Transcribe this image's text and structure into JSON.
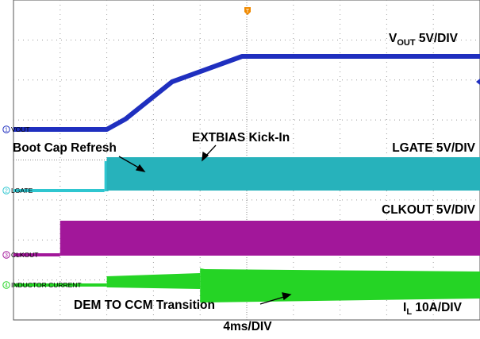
{
  "chart_data": {
    "type": "line",
    "timebase": "4ms/DIV",
    "colors": {
      "VOUT": "#1f2fbf",
      "LGATE": "#2fc6d0",
      "CLKOUT": "#a2179a",
      "INDUCTOR CURRENT": "#25d425"
    },
    "channels": [
      {
        "number": "1",
        "name": "VOUT",
        "scale_label_pre": "V",
        "scale_label_sub": "OUT",
        "scale_label_post": " 5V/DIV",
        "trace": "ramp",
        "start_div": 2.0,
        "end_div": 4.9,
        "low_div": 6.93,
        "high_div": 0.0
      },
      {
        "number": "2",
        "name": "LGATE",
        "scale_label": "LGATE 5V/DIV",
        "trace": "switching",
        "start_div": 2.0,
        "end_div": 10.0
      },
      {
        "number": "3",
        "name": "CLKOUT",
        "scale_label": "CLKOUT 5V/DIV",
        "trace": "clock",
        "start_div": 1.0,
        "end_div": 10.0
      },
      {
        "number": "4",
        "name": "INDUCTOR CURRENT",
        "scale_label_pre": "I",
        "scale_label_sub": "L",
        "scale_label_post": " 10A/DIV",
        "trace": "current",
        "start_div": 2.0,
        "transition_div": 4.0,
        "end_div": 10.0
      }
    ],
    "annotations": [
      {
        "text": "Boot Cap Refresh",
        "time_div": 1.95
      },
      {
        "text": "EXTBIAS Kick-In",
        "time_div": 2.25
      },
      {
        "text": "DEM TO CCM Transition",
        "time_div": 4.0
      }
    ],
    "grid": {
      "divisions_x": 10,
      "divisions_y": 8,
      "style": "dotted"
    }
  }
}
